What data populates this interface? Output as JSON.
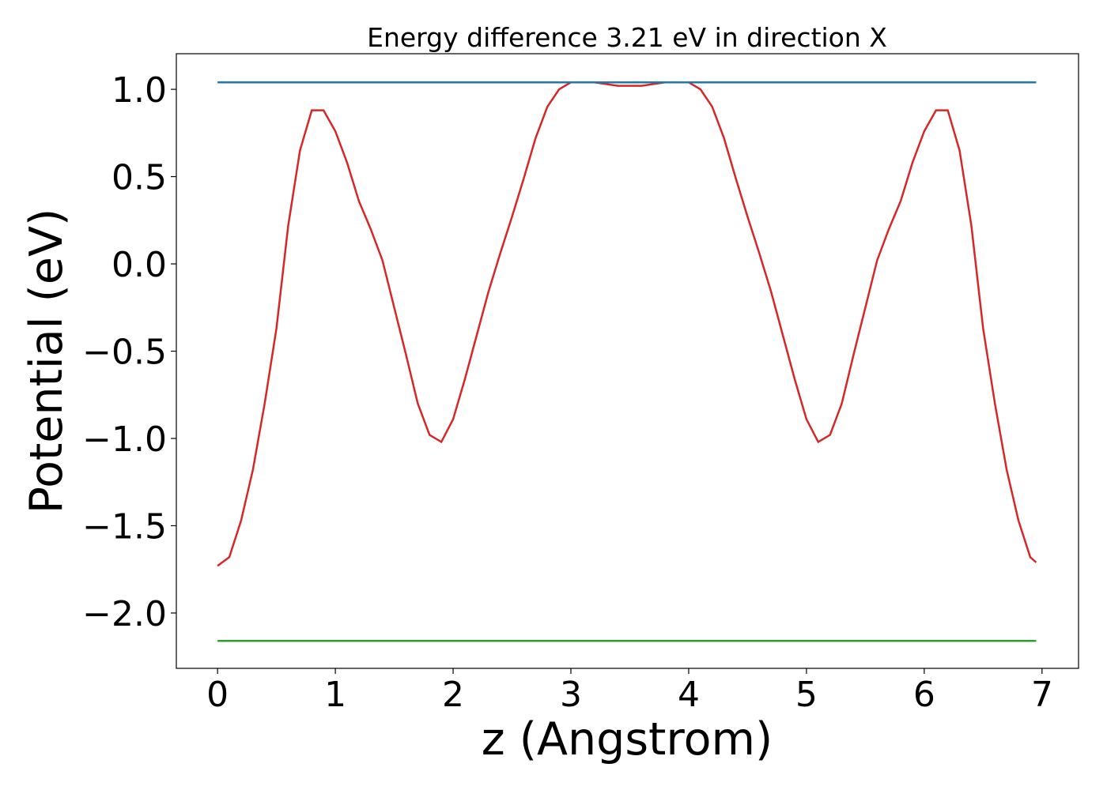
{
  "chart_data": {
    "type": "line",
    "title": "Energy difference 3.21 eV in direction X",
    "x_label": "z (Angstrom)",
    "y_label": "Potential (eV)",
    "xlim": [
      -0.35,
      7.31
    ],
    "ylim": [
      -2.317,
      1.204
    ],
    "xticks": [
      0,
      1,
      2,
      3,
      4,
      5,
      6,
      7
    ],
    "yticks": [
      {
        "value": 1.0,
        "label": "1.0"
      },
      {
        "value": 0.5,
        "label": "0.5"
      },
      {
        "value": 0.0,
        "label": "0.0"
      },
      {
        "value": -0.5,
        "label": "−0.5"
      },
      {
        "value": -1.0,
        "label": "−1.0"
      },
      {
        "value": -1.5,
        "label": "−1.5"
      },
      {
        "value": -2.0,
        "label": "−2.0"
      }
    ],
    "series": [
      {
        "color": "#d62728",
        "x": [
          0,
          0.1,
          0.2,
          0.3,
          0.4,
          0.5,
          0.6,
          0.7,
          0.8,
          0.9,
          1.0,
          1.1,
          1.2,
          1.3,
          1.4,
          1.5,
          1.6,
          1.7,
          1.8,
          1.9,
          2.0,
          2.1,
          2.2,
          2.3,
          2.4,
          2.5,
          2.6,
          2.7,
          2.8,
          2.9,
          3.0,
          3.1,
          3.2,
          3.3,
          3.4,
          3.5,
          3.6,
          3.7,
          3.8,
          3.9,
          4.0,
          4.1,
          4.2,
          4.3,
          4.4,
          4.5,
          4.6,
          4.7,
          4.8,
          4.9,
          5.0,
          5.1,
          5.2,
          5.3,
          5.4,
          5.5,
          5.6,
          5.7,
          5.8,
          5.9,
          6.0,
          6.1,
          6.2,
          6.3,
          6.4,
          6.5,
          6.6,
          6.7,
          6.8,
          6.9,
          6.95
        ],
        "values": [
          -1.73,
          -1.68,
          -1.47,
          -1.18,
          -0.8,
          -0.37,
          0.22,
          0.65,
          0.88,
          0.88,
          0.76,
          0.58,
          0.36,
          0.2,
          0.02,
          -0.25,
          -0.52,
          -0.8,
          -0.98,
          -1.02,
          -0.89,
          -0.66,
          -0.41,
          -0.16,
          0.06,
          0.27,
          0.49,
          0.72,
          0.9,
          1.0,
          1.04,
          1.04,
          1.04,
          1.03,
          1.02,
          1.02,
          1.02,
          1.03,
          1.04,
          1.04,
          1.04,
          1.0,
          0.9,
          0.72,
          0.49,
          0.27,
          0.06,
          -0.16,
          -0.41,
          -0.66,
          -0.89,
          -1.02,
          -0.98,
          -0.8,
          -0.52,
          -0.25,
          0.02,
          0.2,
          0.36,
          0.58,
          0.76,
          0.88,
          0.88,
          0.65,
          0.22,
          -0.37,
          -0.8,
          -1.18,
          -1.47,
          -1.68,
          -1.71
        ]
      },
      {
        "color": "#1f77b4",
        "x": [
          0,
          6.95
        ],
        "values": [
          1.04,
          1.04
        ]
      },
      {
        "color": "#2ca02c",
        "x": [
          0,
          6.95
        ],
        "values": [
          -2.16,
          -2.16
        ]
      }
    ]
  }
}
